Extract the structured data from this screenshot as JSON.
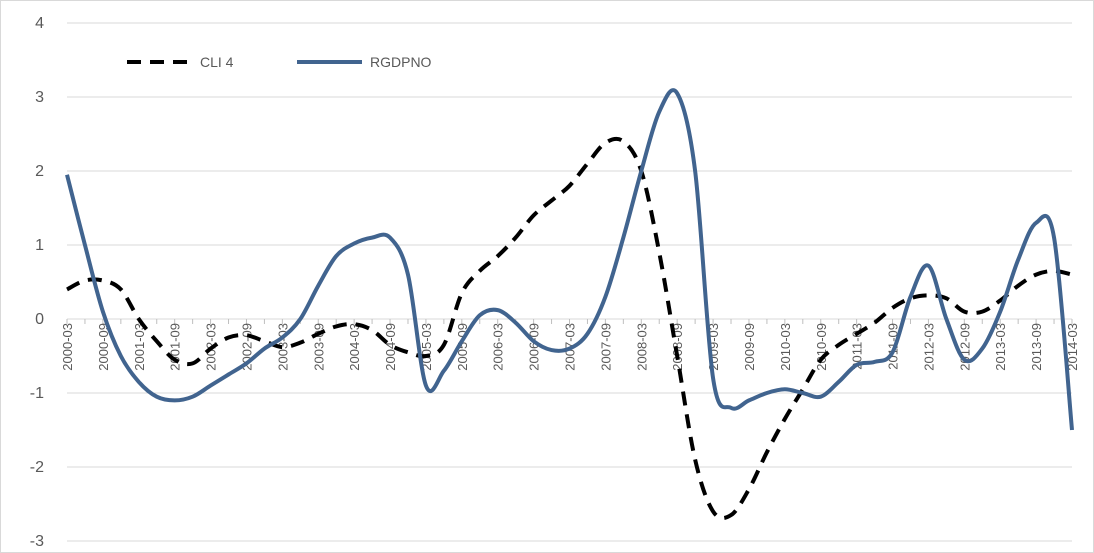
{
  "chart_data": {
    "type": "line",
    "categories": [
      "2000-03",
      null,
      "2000-09",
      null,
      "2001-03",
      null,
      "2001-09",
      null,
      "2002-03",
      null,
      "2002-09",
      null,
      "2003-03",
      null,
      "2003-09",
      null,
      "2004-03",
      null,
      "2004-09",
      null,
      "2005-03",
      null,
      "2005-09",
      null,
      "2006-03",
      null,
      "2006-09",
      null,
      "2007-03",
      null,
      "2007-09",
      null,
      "2008-03",
      null,
      "2008-09",
      null,
      "2009-03",
      null,
      "2009-09",
      null,
      "2010-03",
      null,
      "2010-09",
      null,
      "2011-03",
      null,
      "2011-09",
      null,
      "2012-03",
      null,
      "2012-09",
      null,
      "2013-03",
      null,
      "2013-09",
      null,
      "2014-03"
    ],
    "series": [
      {
        "name": "CLI 4",
        "color": "#000000",
        "dash": true,
        "values": [
          0.4,
          0.52,
          0.52,
          0.4,
          0.0,
          -0.3,
          -0.55,
          -0.6,
          -0.4,
          -0.25,
          -0.22,
          -0.3,
          -0.38,
          -0.32,
          -0.2,
          -0.1,
          -0.07,
          -0.15,
          -0.35,
          -0.45,
          -0.5,
          -0.35,
          0.35,
          0.65,
          0.85,
          1.1,
          1.4,
          1.6,
          1.8,
          2.1,
          2.38,
          2.4,
          2.0,
          0.9,
          -0.5,
          -1.9,
          -2.6,
          -2.65,
          -2.3,
          -1.8,
          -1.35,
          -0.95,
          -0.55,
          -0.35,
          -0.2,
          -0.05,
          0.15,
          0.28,
          0.32,
          0.28,
          0.1,
          0.1,
          0.25,
          0.45,
          0.6,
          0.65,
          0.6
        ]
      },
      {
        "name": "RGDPNO",
        "color": "#41648f",
        "dash": false,
        "values": [
          1.95,
          1.0,
          0.1,
          -0.5,
          -0.85,
          -1.05,
          -1.1,
          -1.05,
          -0.9,
          -0.75,
          -0.6,
          -0.4,
          -0.25,
          0.0,
          0.45,
          0.85,
          1.02,
          1.1,
          1.1,
          0.6,
          -0.9,
          -0.7,
          -0.3,
          0.05,
          0.12,
          -0.05,
          -0.3,
          -0.42,
          -0.4,
          -0.2,
          0.3,
          1.1,
          2.0,
          2.8,
          3.05,
          2.0,
          -0.8,
          -1.2,
          -1.1,
          -1.0,
          -0.95,
          -1.0,
          -1.05,
          -0.85,
          -0.62,
          -0.58,
          -0.45,
          0.3,
          0.72,
          0.0,
          -0.55,
          -0.4,
          0.1,
          0.8,
          1.3,
          1.1,
          -1.5
        ]
      }
    ],
    "ylim": [
      -3,
      4
    ],
    "yticks": [
      -3,
      -2,
      -1,
      0,
      1,
      2,
      3,
      4
    ],
    "grid": true,
    "legend": "top-left"
  }
}
